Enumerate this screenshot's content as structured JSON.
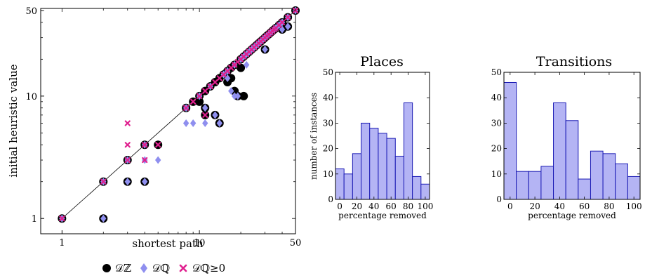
{
  "scatter": {
    "type": "scatter",
    "xlabel": "shortest path",
    "ylabel": "initial heuristic value",
    "scale": "log",
    "xlim": [
      0.7,
      50
    ],
    "ylim": [
      0.75,
      52
    ],
    "xticks": [
      {
        "v": 1,
        "label": "1"
      },
      {
        "v": 10,
        "label": "10"
      },
      {
        "v": 50,
        "label": "50"
      }
    ],
    "yticks": [
      {
        "v": 1,
        "label": "1"
      },
      {
        "v": 10,
        "label": "10"
      },
      {
        "v": 50,
        "label": "50"
      }
    ],
    "series": [
      {
        "name": "𝒟ℤ",
        "marker": "circle",
        "color": "#000000",
        "points": [
          [
            1,
            1
          ],
          [
            2,
            1
          ],
          [
            2,
            2
          ],
          [
            3,
            2
          ],
          [
            3,
            3
          ],
          [
            4,
            2
          ],
          [
            4,
            4
          ],
          [
            5,
            4
          ],
          [
            8,
            8
          ],
          [
            9,
            9
          ],
          [
            10,
            10
          ],
          [
            10,
            9
          ],
          [
            11,
            11
          ],
          [
            11,
            8
          ],
          [
            11,
            7
          ],
          [
            12,
            12
          ],
          [
            13,
            13
          ],
          [
            13,
            7
          ],
          [
            14,
            14
          ],
          [
            14,
            6
          ],
          [
            15,
            15
          ],
          [
            16,
            16
          ],
          [
            16,
            13
          ],
          [
            17,
            17
          ],
          [
            17,
            14
          ],
          [
            18,
            18
          ],
          [
            18,
            11
          ],
          [
            19,
            10
          ],
          [
            20,
            20
          ],
          [
            20,
            17
          ],
          [
            21,
            21
          ],
          [
            21,
            10
          ],
          [
            22,
            22
          ],
          [
            23,
            23
          ],
          [
            24,
            24
          ],
          [
            25,
            25
          ],
          [
            26,
            26
          ],
          [
            27,
            27
          ],
          [
            28,
            28
          ],
          [
            29,
            29
          ],
          [
            30,
            30
          ],
          [
            30,
            24
          ],
          [
            31,
            31
          ],
          [
            32,
            32
          ],
          [
            33,
            33
          ],
          [
            34,
            34
          ],
          [
            35,
            35
          ],
          [
            36,
            36
          ],
          [
            38,
            38
          ],
          [
            40,
            40
          ],
          [
            40,
            35
          ],
          [
            44,
            44
          ],
          [
            44,
            37
          ],
          [
            50,
            50
          ]
        ]
      },
      {
        "name": "𝒟ℚ",
        "marker": "diamond",
        "color": "#8f8fef",
        "points": [
          [
            1,
            1
          ],
          [
            2,
            1
          ],
          [
            2,
            2
          ],
          [
            3,
            2
          ],
          [
            3,
            3
          ],
          [
            4,
            2
          ],
          [
            4,
            4
          ],
          [
            4,
            3
          ],
          [
            5,
            3
          ],
          [
            8,
            6
          ],
          [
            8,
            8
          ],
          [
            9,
            6
          ],
          [
            10,
            10
          ],
          [
            11,
            6
          ],
          [
            11,
            8
          ],
          [
            12,
            12
          ],
          [
            13,
            7
          ],
          [
            14,
            6
          ],
          [
            15,
            15
          ],
          [
            16,
            14
          ],
          [
            16,
            16
          ],
          [
            17,
            11
          ],
          [
            18,
            18
          ],
          [
            18,
            10
          ],
          [
            19,
            10
          ],
          [
            20,
            20
          ],
          [
            21,
            21
          ],
          [
            22,
            22
          ],
          [
            22,
            18
          ],
          [
            23,
            23
          ],
          [
            24,
            24
          ],
          [
            25,
            25
          ],
          [
            26,
            26
          ],
          [
            27,
            27
          ],
          [
            28,
            28
          ],
          [
            29,
            29
          ],
          [
            30,
            24
          ],
          [
            30,
            30
          ],
          [
            31,
            31
          ],
          [
            32,
            32
          ],
          [
            33,
            33
          ],
          [
            35,
            35
          ],
          [
            36,
            36
          ],
          [
            38,
            38
          ],
          [
            40,
            35
          ],
          [
            40,
            40
          ],
          [
            44,
            37
          ],
          [
            44,
            44
          ],
          [
            50,
            50
          ]
        ]
      },
      {
        "name": "𝒟ℚ≥0",
        "marker": "cross",
        "color": "#e0208f",
        "points": [
          [
            1,
            1
          ],
          [
            2,
            2
          ],
          [
            3,
            3
          ],
          [
            3,
            4
          ],
          [
            3,
            6
          ],
          [
            4,
            3
          ],
          [
            4,
            4
          ],
          [
            5,
            4
          ],
          [
            8,
            8
          ],
          [
            9,
            9
          ],
          [
            10,
            10
          ],
          [
            11,
            11
          ],
          [
            11,
            7
          ],
          [
            12,
            12
          ],
          [
            13,
            13
          ],
          [
            14,
            14
          ],
          [
            15,
            15
          ],
          [
            16,
            16
          ],
          [
            17,
            17
          ],
          [
            18,
            18
          ],
          [
            19,
            19
          ],
          [
            20,
            20
          ],
          [
            21,
            21
          ],
          [
            22,
            22
          ],
          [
            23,
            23
          ],
          [
            24,
            24
          ],
          [
            25,
            25
          ],
          [
            26,
            26
          ],
          [
            27,
            27
          ],
          [
            28,
            28
          ],
          [
            29,
            29
          ],
          [
            30,
            30
          ],
          [
            31,
            31
          ],
          [
            32,
            32
          ],
          [
            33,
            33
          ],
          [
            34,
            34
          ],
          [
            35,
            35
          ],
          [
            36,
            36
          ],
          [
            38,
            38
          ],
          [
            40,
            40
          ],
          [
            44,
            44
          ],
          [
            50,
            50
          ]
        ]
      }
    ]
  },
  "histograms": [
    {
      "type": "bar",
      "title": "Places",
      "xlabel": "percentage removed",
      "ylabel": "number of instances",
      "ylim": [
        0,
        50
      ],
      "xlim": [
        -5,
        105
      ],
      "bin_width": 10,
      "bin_starts": [
        -5,
        5,
        15,
        25,
        35,
        45,
        55,
        65,
        75,
        85,
        95
      ],
      "values": [
        12,
        10,
        18,
        30,
        28,
        26,
        24,
        17,
        38,
        9,
        6
      ],
      "xticks": [
        0,
        20,
        40,
        60,
        80,
        100
      ],
      "yticks": [
        0,
        10,
        20,
        30,
        40,
        50
      ]
    },
    {
      "type": "bar",
      "title": "Transitions",
      "xlabel": "percentage removed",
      "ylabel": "",
      "ylim": [
        0,
        50
      ],
      "xlim": [
        -5,
        105
      ],
      "bin_width": 10,
      "bin_starts": [
        -5,
        5,
        15,
        25,
        35,
        45,
        55,
        65,
        75,
        85,
        95
      ],
      "values": [
        46,
        11,
        11,
        13,
        38,
        31,
        8,
        19,
        18,
        14,
        9
      ],
      "xticks": [
        0,
        20,
        40,
        60,
        80,
        100
      ],
      "yticks": [
        0,
        10,
        20,
        30,
        40,
        50
      ]
    }
  ],
  "colors": {
    "bar_fill": "#b4b4f4",
    "bar_stroke": "#1a1ab4",
    "diag_line": "#000000"
  }
}
